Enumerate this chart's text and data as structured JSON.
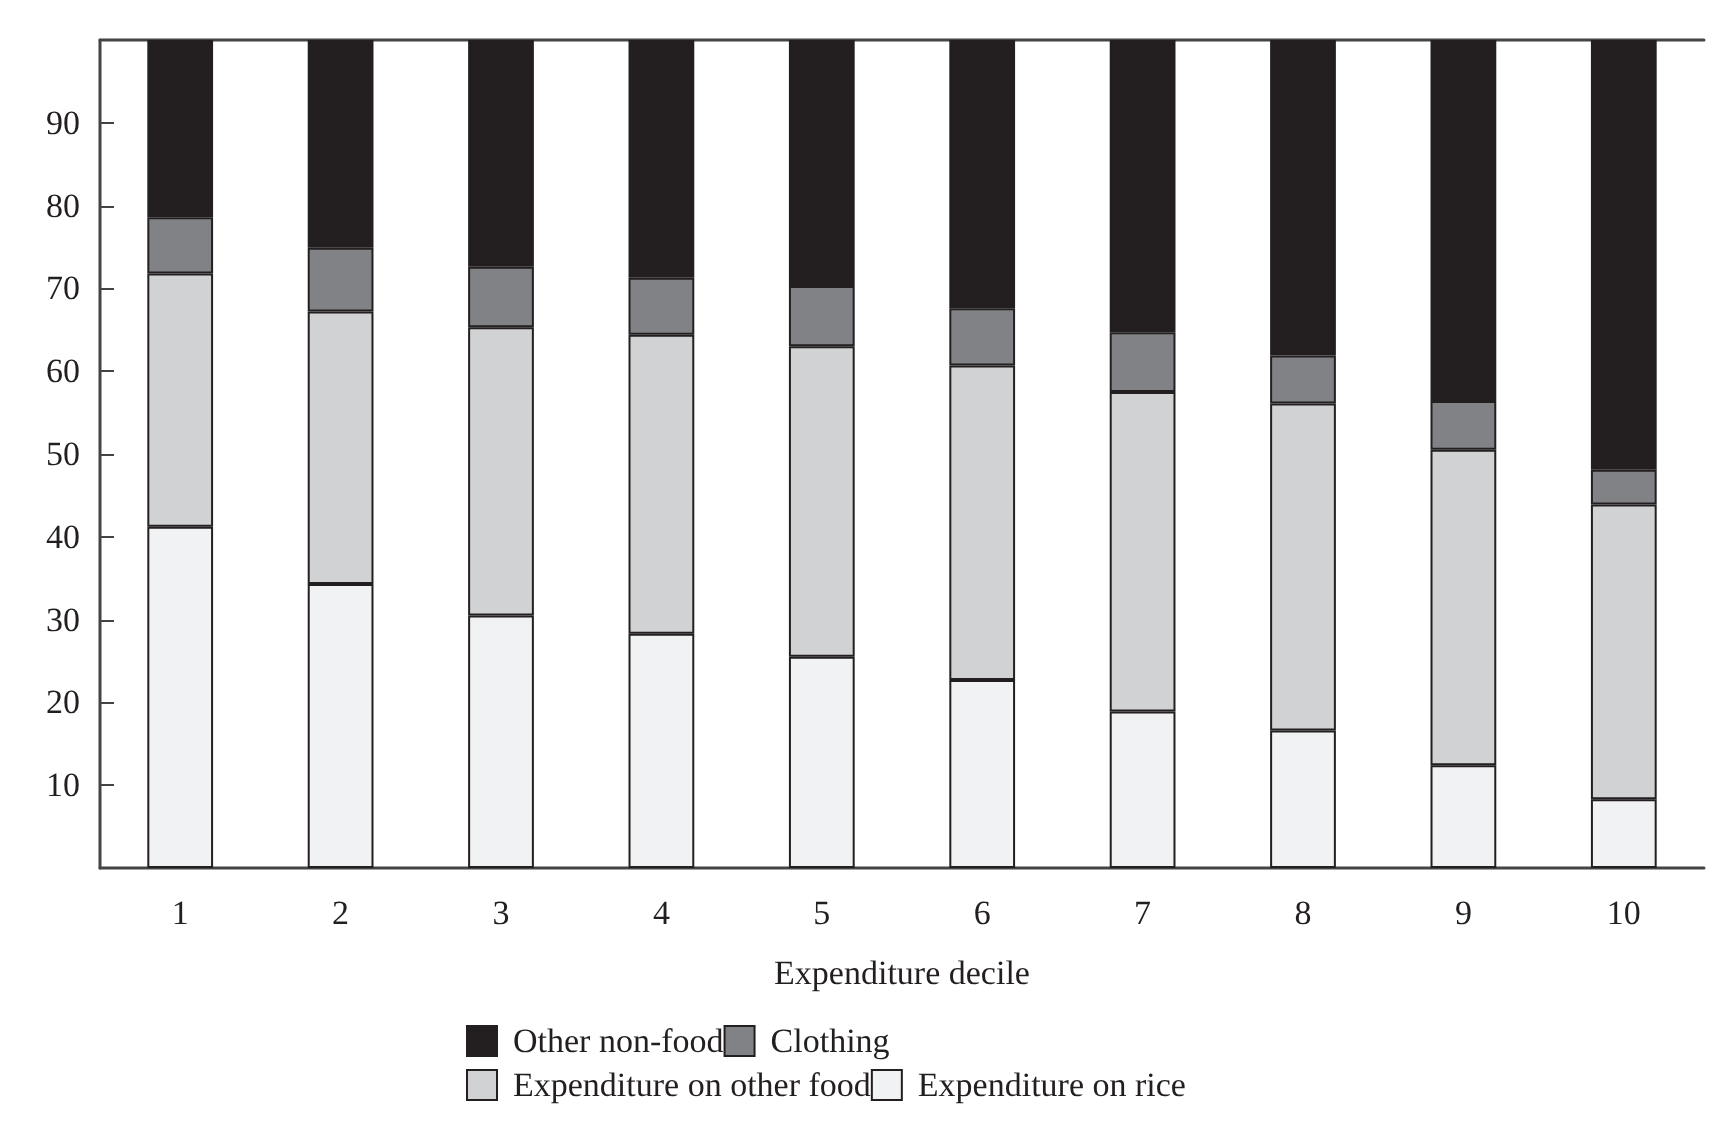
{
  "chart_data": {
    "type": "bar",
    "stacked": true,
    "xlabel": "Expenditure decile",
    "categories": [
      "1",
      "2",
      "3",
      "4",
      "5",
      "6",
      "7",
      "8",
      "9",
      "10"
    ],
    "series": [
      {
        "name": "Expenditure on rice",
        "color": "#f1f2f3",
        "values": [
          41.2,
          34.3,
          30.5,
          28.3,
          25.5,
          22.7,
          18.9,
          16.6,
          12.4,
          8.3
        ]
      },
      {
        "name": "Expenditure on other food",
        "color": "#d1d2d4",
        "values": [
          30.6,
          32.9,
          34.8,
          36.1,
          37.5,
          38.0,
          38.6,
          39.5,
          38.1,
          35.6
        ]
      },
      {
        "name": "Clothing",
        "color": "#818285",
        "values": [
          6.8,
          7.7,
          7.3,
          6.9,
          7.3,
          6.9,
          7.2,
          5.8,
          5.9,
          4.2
        ]
      },
      {
        "name": "Other non-food",
        "color": "#231f20",
        "values": [
          21.4,
          25.1,
          27.4,
          28.7,
          29.7,
          32.4,
          35.3,
          38.1,
          43.6,
          51.9
        ]
      }
    ],
    "ylim": [
      0,
      100
    ],
    "yticks": [
      10,
      20,
      30,
      40,
      50,
      60,
      70,
      80,
      90
    ],
    "grid": false,
    "legend": "bottom"
  }
}
